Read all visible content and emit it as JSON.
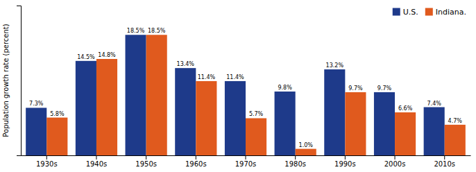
{
  "chart_data": {
    "type": "bar",
    "ylabel": "Population growth rate (percent)",
    "categories": [
      "1930s",
      "1940s",
      "1950s",
      "1960s",
      "1970s",
      "1980s",
      "1990s",
      "2000s",
      "2010s"
    ],
    "series": [
      {
        "name": "U.S.",
        "color": "#1E3A8A",
        "values": [
          7.3,
          14.5,
          18.5,
          13.4,
          11.4,
          9.8,
          13.2,
          9.7,
          7.4
        ],
        "value_labels": [
          "7.3%",
          "14.5%",
          "18.5%",
          "13.4%",
          "11.4%",
          "9.8%",
          "13.2%",
          "9.7%",
          "7.4%"
        ]
      },
      {
        "name": "Indiana.",
        "color": "#E05A1E",
        "values": [
          5.8,
          14.8,
          18.5,
          11.4,
          5.7,
          1.0,
          9.7,
          6.6,
          4.7
        ],
        "value_labels": [
          "5.8%",
          "14.8%",
          "18.5%",
          "11.4%",
          "5.7%",
          "1.0%",
          "9.7%",
          "6.6%",
          "4.7%"
        ]
      }
    ],
    "ylim": [
      0,
      23
    ],
    "grid": false,
    "legend": "upper right",
    "data_labels": true,
    "tick_labels": "x"
  }
}
